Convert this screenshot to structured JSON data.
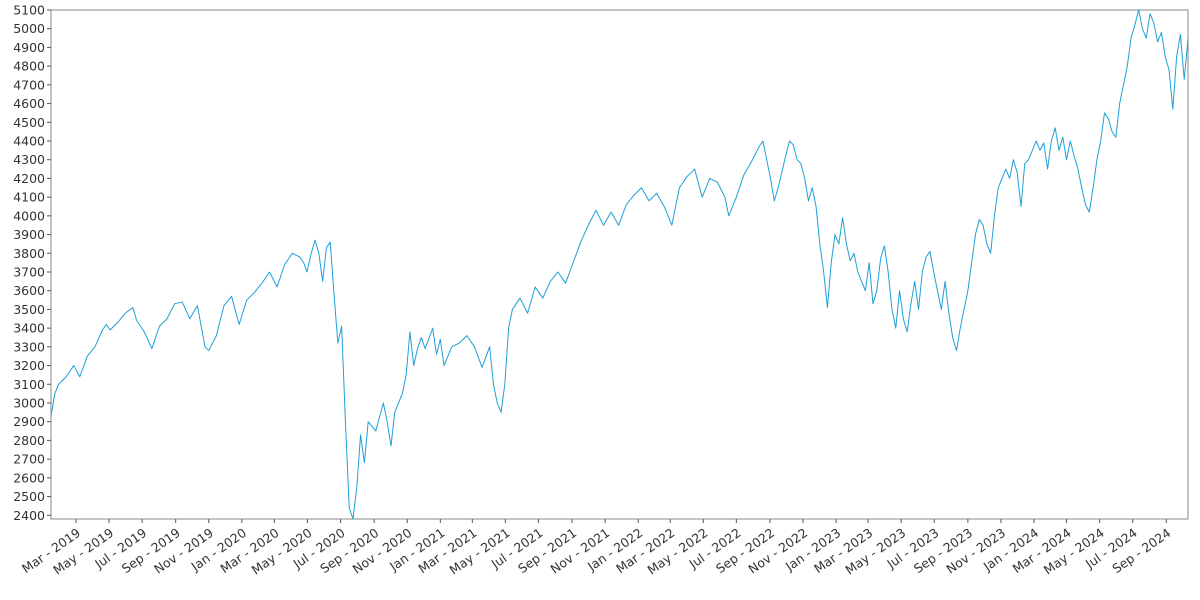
{
  "chart_data": {
    "type": "line",
    "title": "",
    "xlabel": "",
    "ylabel": "",
    "xlim": [
      "2019-01-14",
      "2024-10-11"
    ],
    "ylim": [
      2380,
      5100
    ],
    "y_ticks": [
      2400,
      2500,
      2600,
      2700,
      2800,
      2900,
      3000,
      3100,
      3200,
      3300,
      3400,
      3500,
      3600,
      3700,
      3800,
      3900,
      4000,
      4100,
      4200,
      4300,
      4400,
      4500,
      4600,
      4700,
      4800,
      4900,
      5000,
      5100
    ],
    "x_ticks": [
      {
        "date": "2019-03-01",
        "label": "Mar - 2019"
      },
      {
        "date": "2019-05-01",
        "label": "May - 2019"
      },
      {
        "date": "2019-07-01",
        "label": "Jul - 2019"
      },
      {
        "date": "2019-09-01",
        "label": "Sep - 2019"
      },
      {
        "date": "2019-11-01",
        "label": "Nov - 2019"
      },
      {
        "date": "2020-01-01",
        "label": "Jan - 2020"
      },
      {
        "date": "2020-03-01",
        "label": "Mar - 2020"
      },
      {
        "date": "2020-05-01",
        "label": "May - 2020"
      },
      {
        "date": "2020-07-01",
        "label": "Jul - 2020"
      },
      {
        "date": "2020-09-01",
        "label": "Sep - 2020"
      },
      {
        "date": "2020-11-01",
        "label": "Nov - 2020"
      },
      {
        "date": "2021-01-01",
        "label": "Jan - 2021"
      },
      {
        "date": "2021-03-01",
        "label": "Mar - 2021"
      },
      {
        "date": "2021-05-01",
        "label": "May - 2021"
      },
      {
        "date": "2021-07-01",
        "label": "Jul - 2021"
      },
      {
        "date": "2021-09-01",
        "label": "Sep - 2021"
      },
      {
        "date": "2021-11-01",
        "label": "Nov - 2021"
      },
      {
        "date": "2022-01-01",
        "label": "Jan - 2022"
      },
      {
        "date": "2022-03-01",
        "label": "Mar - 2022"
      },
      {
        "date": "2022-05-01",
        "label": "May - 2022"
      },
      {
        "date": "2022-07-01",
        "label": "Jul - 2022"
      },
      {
        "date": "2022-09-01",
        "label": "Sep - 2022"
      },
      {
        "date": "2022-11-01",
        "label": "Nov - 2022"
      },
      {
        "date": "2023-01-01",
        "label": "Jan - 2023"
      },
      {
        "date": "2023-03-01",
        "label": "Mar - 2023"
      },
      {
        "date": "2023-05-01",
        "label": "May - 2023"
      },
      {
        "date": "2023-07-01",
        "label": "Jul - 2023"
      },
      {
        "date": "2023-09-01",
        "label": "Sep - 2023"
      },
      {
        "date": "2023-11-01",
        "label": "Nov - 2023"
      },
      {
        "date": "2024-01-01",
        "label": "Jan - 2024"
      },
      {
        "date": "2024-03-01",
        "label": "Mar - 2024"
      },
      {
        "date": "2024-05-01",
        "label": "May - 2024"
      },
      {
        "date": "2024-07-01",
        "label": "Jul - 2024"
      },
      {
        "date": "2024-09-01",
        "label": "Sep - 2024"
      }
    ],
    "grid": false,
    "legend": "none",
    "series": [
      {
        "color": "#1f9fd8",
        "points": [
          [
            "2019-01-14",
            2930
          ],
          [
            "2019-01-21",
            3050
          ],
          [
            "2019-01-28",
            3100
          ],
          [
            "2019-02-11",
            3140
          ],
          [
            "2019-02-25",
            3200
          ],
          [
            "2019-03-08",
            3140
          ],
          [
            "2019-03-22",
            3250
          ],
          [
            "2019-04-05",
            3300
          ],
          [
            "2019-04-19",
            3390
          ],
          [
            "2019-04-26",
            3420
          ],
          [
            "2019-05-03",
            3390
          ],
          [
            "2019-05-17",
            3430
          ],
          [
            "2019-05-31",
            3480
          ],
          [
            "2019-06-14",
            3510
          ],
          [
            "2019-06-21",
            3440
          ],
          [
            "2019-07-05",
            3380
          ],
          [
            "2019-07-19",
            3290
          ],
          [
            "2019-08-02",
            3410
          ],
          [
            "2019-08-16",
            3450
          ],
          [
            "2019-08-30",
            3530
          ],
          [
            "2019-09-13",
            3540
          ],
          [
            "2019-09-27",
            3450
          ],
          [
            "2019-10-11",
            3520
          ],
          [
            "2019-10-25",
            3300
          ],
          [
            "2019-11-01",
            3280
          ],
          [
            "2019-11-15",
            3360
          ],
          [
            "2019-11-29",
            3520
          ],
          [
            "2019-12-13",
            3570
          ],
          [
            "2019-12-27",
            3420
          ],
          [
            "2020-01-10",
            3550
          ],
          [
            "2020-01-24",
            3590
          ],
          [
            "2020-02-07",
            3640
          ],
          [
            "2020-02-21",
            3700
          ],
          [
            "2020-03-06",
            3620
          ],
          [
            "2020-03-20",
            3740
          ],
          [
            "2020-04-03",
            3800
          ],
          [
            "2020-04-17",
            3780
          ],
          [
            "2020-04-24",
            3750
          ],
          [
            "2020-04-30",
            3700
          ],
          [
            "2020-05-08",
            3800
          ],
          [
            "2020-05-15",
            3870
          ],
          [
            "2020-05-22",
            3800
          ],
          [
            "2020-05-29",
            3650
          ],
          [
            "2020-06-05",
            3830
          ],
          [
            "2020-06-12",
            3860
          ],
          [
            "2020-06-19",
            3580
          ],
          [
            "2020-06-26",
            3320
          ],
          [
            "2020-07-03",
            3410
          ],
          [
            "2020-07-10",
            2900
          ],
          [
            "2020-07-17",
            2440
          ],
          [
            "2020-07-24",
            2380
          ],
          [
            "2020-07-31",
            2550
          ],
          [
            "2020-08-07",
            2830
          ],
          [
            "2020-08-14",
            2680
          ],
          [
            "2020-08-21",
            2900
          ],
          [
            "2020-09-04",
            2850
          ],
          [
            "2020-09-18",
            3000
          ],
          [
            "2020-09-25",
            2900
          ],
          [
            "2020-10-02",
            2770
          ],
          [
            "2020-10-09",
            2950
          ],
          [
            "2020-10-23",
            3050
          ],
          [
            "2020-10-30",
            3150
          ],
          [
            "2020-11-06",
            3380
          ],
          [
            "2020-11-13",
            3200
          ],
          [
            "2020-11-20",
            3290
          ],
          [
            "2020-11-27",
            3350
          ],
          [
            "2020-12-04",
            3290
          ],
          [
            "2020-12-18",
            3400
          ],
          [
            "2020-12-25",
            3260
          ],
          [
            "2021-01-01",
            3340
          ],
          [
            "2021-01-08",
            3200
          ],
          [
            "2021-01-22",
            3300
          ],
          [
            "2021-02-05",
            3320
          ],
          [
            "2021-02-19",
            3360
          ],
          [
            "2021-03-05",
            3300
          ],
          [
            "2021-03-19",
            3190
          ],
          [
            "2021-04-02",
            3300
          ],
          [
            "2021-04-09",
            3100
          ],
          [
            "2021-04-16",
            3000
          ],
          [
            "2021-04-23",
            2950
          ],
          [
            "2021-04-30",
            3100
          ],
          [
            "2021-05-07",
            3400
          ],
          [
            "2021-05-14",
            3500
          ],
          [
            "2021-05-28",
            3560
          ],
          [
            "2021-06-11",
            3480
          ],
          [
            "2021-06-25",
            3620
          ],
          [
            "2021-07-09",
            3560
          ],
          [
            "2021-07-23",
            3650
          ],
          [
            "2021-08-06",
            3700
          ],
          [
            "2021-08-20",
            3640
          ],
          [
            "2021-09-03",
            3750
          ],
          [
            "2021-09-17",
            3860
          ],
          [
            "2021-10-01",
            3950
          ],
          [
            "2021-10-08",
            3990
          ],
          [
            "2021-10-15",
            4030
          ],
          [
            "2021-10-29",
            3950
          ],
          [
            "2021-11-12",
            4020
          ],
          [
            "2021-11-26",
            3950
          ],
          [
            "2021-12-10",
            4060
          ],
          [
            "2021-12-24",
            4110
          ],
          [
            "2022-01-07",
            4150
          ],
          [
            "2022-01-21",
            4080
          ],
          [
            "2022-02-04",
            4120
          ],
          [
            "2022-02-18",
            4050
          ],
          [
            "2022-03-04",
            3950
          ],
          [
            "2022-03-18",
            4150
          ],
          [
            "2022-04-01",
            4210
          ],
          [
            "2022-04-15",
            4250
          ],
          [
            "2022-04-29",
            4100
          ],
          [
            "2022-05-13",
            4200
          ],
          [
            "2022-05-27",
            4180
          ],
          [
            "2022-06-10",
            4100
          ],
          [
            "2022-06-17",
            4000
          ],
          [
            "2022-07-01",
            4100
          ],
          [
            "2022-07-15",
            4220
          ],
          [
            "2022-07-29",
            4290
          ],
          [
            "2022-08-12",
            4370
          ],
          [
            "2022-08-19",
            4400
          ],
          [
            "2022-08-26",
            4300
          ],
          [
            "2022-09-02",
            4200
          ],
          [
            "2022-09-09",
            4080
          ],
          [
            "2022-09-16",
            4150
          ],
          [
            "2022-09-30",
            4320
          ],
          [
            "2022-10-07",
            4400
          ],
          [
            "2022-10-14",
            4380
          ],
          [
            "2022-10-21",
            4300
          ],
          [
            "2022-10-28",
            4280
          ],
          [
            "2022-11-04",
            4200
          ],
          [
            "2022-11-11",
            4080
          ],
          [
            "2022-11-18",
            4150
          ],
          [
            "2022-11-25",
            4050
          ],
          [
            "2022-12-02",
            3850
          ],
          [
            "2022-12-09",
            3700
          ],
          [
            "2022-12-16",
            3510
          ],
          [
            "2022-12-23",
            3750
          ],
          [
            "2022-12-30",
            3900
          ],
          [
            "2023-01-06",
            3850
          ],
          [
            "2023-01-13",
            3990
          ],
          [
            "2023-01-20",
            3850
          ],
          [
            "2023-01-27",
            3760
          ],
          [
            "2023-02-03",
            3800
          ],
          [
            "2023-02-10",
            3700
          ],
          [
            "2023-02-17",
            3650
          ],
          [
            "2023-02-24",
            3600
          ],
          [
            "2023-03-03",
            3750
          ],
          [
            "2023-03-10",
            3530
          ],
          [
            "2023-03-17",
            3600
          ],
          [
            "2023-03-24",
            3770
          ],
          [
            "2023-03-31",
            3840
          ],
          [
            "2023-04-07",
            3700
          ],
          [
            "2023-04-14",
            3500
          ],
          [
            "2023-04-21",
            3400
          ],
          [
            "2023-04-28",
            3600
          ],
          [
            "2023-05-05",
            3450
          ],
          [
            "2023-05-12",
            3380
          ],
          [
            "2023-05-19",
            3530
          ],
          [
            "2023-05-26",
            3650
          ],
          [
            "2023-06-02",
            3500
          ],
          [
            "2023-06-09",
            3700
          ],
          [
            "2023-06-16",
            3780
          ],
          [
            "2023-06-23",
            3810
          ],
          [
            "2023-06-30",
            3700
          ],
          [
            "2023-07-07",
            3600
          ],
          [
            "2023-07-14",
            3500
          ],
          [
            "2023-07-21",
            3650
          ],
          [
            "2023-07-28",
            3480
          ],
          [
            "2023-08-04",
            3350
          ],
          [
            "2023-08-11",
            3280
          ],
          [
            "2023-08-18",
            3400
          ],
          [
            "2023-08-25",
            3500
          ],
          [
            "2023-09-01",
            3600
          ],
          [
            "2023-09-08",
            3750
          ],
          [
            "2023-09-15",
            3900
          ],
          [
            "2023-09-22",
            3980
          ],
          [
            "2023-09-29",
            3950
          ],
          [
            "2023-10-06",
            3850
          ],
          [
            "2023-10-13",
            3800
          ],
          [
            "2023-10-20",
            4000
          ],
          [
            "2023-10-27",
            4150
          ],
          [
            "2023-11-03",
            4200
          ],
          [
            "2023-11-10",
            4250
          ],
          [
            "2023-11-17",
            4200
          ],
          [
            "2023-11-24",
            4300
          ],
          [
            "2023-12-01",
            4230
          ],
          [
            "2023-12-08",
            4050
          ],
          [
            "2023-12-15",
            4280
          ],
          [
            "2023-12-22",
            4300
          ],
          [
            "2023-12-29",
            4350
          ],
          [
            "2024-01-05",
            4400
          ],
          [
            "2024-01-12",
            4350
          ],
          [
            "2024-01-19",
            4390
          ],
          [
            "2024-01-26",
            4250
          ],
          [
            "2024-02-02",
            4400
          ],
          [
            "2024-02-09",
            4470
          ],
          [
            "2024-02-16",
            4350
          ],
          [
            "2024-02-23",
            4420
          ],
          [
            "2024-03-01",
            4300
          ],
          [
            "2024-03-08",
            4400
          ],
          [
            "2024-03-15",
            4320
          ],
          [
            "2024-03-22",
            4250
          ],
          [
            "2024-03-29",
            4150
          ],
          [
            "2024-04-05",
            4060
          ],
          [
            "2024-04-12",
            4020
          ],
          [
            "2024-04-19",
            4150
          ],
          [
            "2024-04-26",
            4300
          ],
          [
            "2024-05-03",
            4400
          ],
          [
            "2024-05-10",
            4550
          ],
          [
            "2024-05-17",
            4520
          ],
          [
            "2024-05-24",
            4450
          ],
          [
            "2024-05-31",
            4420
          ],
          [
            "2024-06-07",
            4600
          ],
          [
            "2024-06-14",
            4700
          ],
          [
            "2024-06-21",
            4800
          ],
          [
            "2024-06-28",
            4950
          ],
          [
            "2024-07-05",
            5020
          ],
          [
            "2024-07-12",
            5100
          ],
          [
            "2024-07-19",
            5000
          ],
          [
            "2024-07-26",
            4950
          ],
          [
            "2024-08-02",
            5080
          ],
          [
            "2024-08-09",
            5030
          ],
          [
            "2024-08-16",
            4930
          ],
          [
            "2024-08-23",
            4980
          ],
          [
            "2024-08-30",
            4850
          ],
          [
            "2024-09-06",
            4780
          ],
          [
            "2024-09-13",
            4570
          ],
          [
            "2024-09-20",
            4850
          ],
          [
            "2024-09-27",
            4970
          ],
          [
            "2024-10-04",
            4730
          ],
          [
            "2024-10-08",
            4850
          ],
          [
            "2024-10-11",
            4950
          ]
        ]
      }
    ]
  }
}
